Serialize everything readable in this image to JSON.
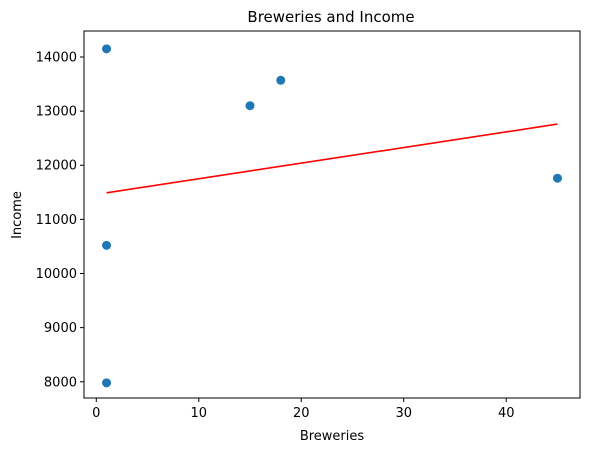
{
  "chart_data": {
    "type": "scatter",
    "title": "Breweries and Income",
    "xlabel": "Breweries",
    "ylabel": "Income",
    "xlim": [
      -1.2,
      47.2
    ],
    "ylim": [
      7700,
      14480
    ],
    "xticks": [
      0,
      10,
      20,
      30,
      40
    ],
    "yticks": [
      8000,
      9000,
      10000,
      11000,
      12000,
      13000,
      14000
    ],
    "grid": false,
    "points": [
      {
        "x": 1,
        "y": 14150
      },
      {
        "x": 1,
        "y": 10520
      },
      {
        "x": 1,
        "y": 7980
      },
      {
        "x": 15,
        "y": 13100
      },
      {
        "x": 18,
        "y": 13570
      },
      {
        "x": 45,
        "y": 11760
      }
    ],
    "regression_line": {
      "x": [
        1,
        45
      ],
      "y": [
        11490,
        12760
      ]
    },
    "colors": {
      "points": "#1f77b4",
      "regression": "#ff0000"
    }
  }
}
